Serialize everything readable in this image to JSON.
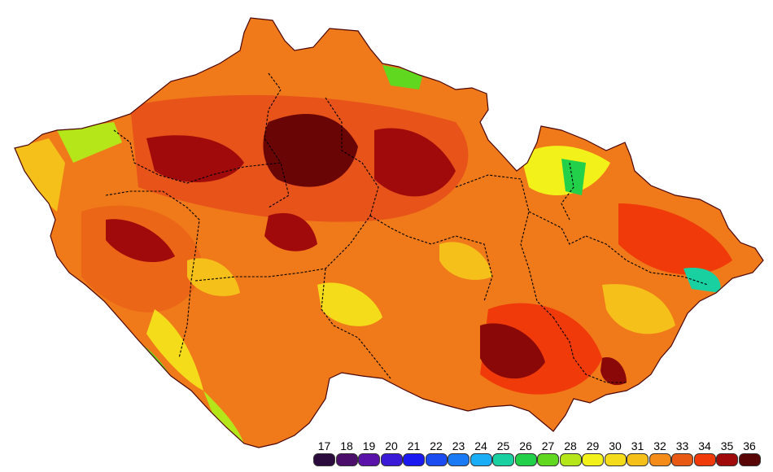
{
  "legend": {
    "items": [
      {
        "label": "17",
        "color": "#2b0a3d"
      },
      {
        "label": "18",
        "color": "#4b0f6b"
      },
      {
        "label": "19",
        "color": "#5a12a8"
      },
      {
        "label": "20",
        "color": "#3a1ad6"
      },
      {
        "label": "21",
        "color": "#1a1af0"
      },
      {
        "label": "22",
        "color": "#1a4cf2"
      },
      {
        "label": "23",
        "color": "#1a7af5"
      },
      {
        "label": "24",
        "color": "#19aef5"
      },
      {
        "label": "25",
        "color": "#19d0a0"
      },
      {
        "label": "26",
        "color": "#22d04a"
      },
      {
        "label": "27",
        "color": "#5fd81f"
      },
      {
        "label": "28",
        "color": "#b5e61a"
      },
      {
        "label": "29",
        "color": "#f2f21a"
      },
      {
        "label": "30",
        "color": "#f5dc1a"
      },
      {
        "label": "31",
        "color": "#f5c01a"
      },
      {
        "label": "32",
        "color": "#f58c1a"
      },
      {
        "label": "33",
        "color": "#e85a14"
      },
      {
        "label": "34",
        "color": "#f03a0a"
      },
      {
        "label": "35",
        "color": "#a00a0a"
      },
      {
        "label": "36",
        "color": "#5a0505"
      }
    ]
  }
}
